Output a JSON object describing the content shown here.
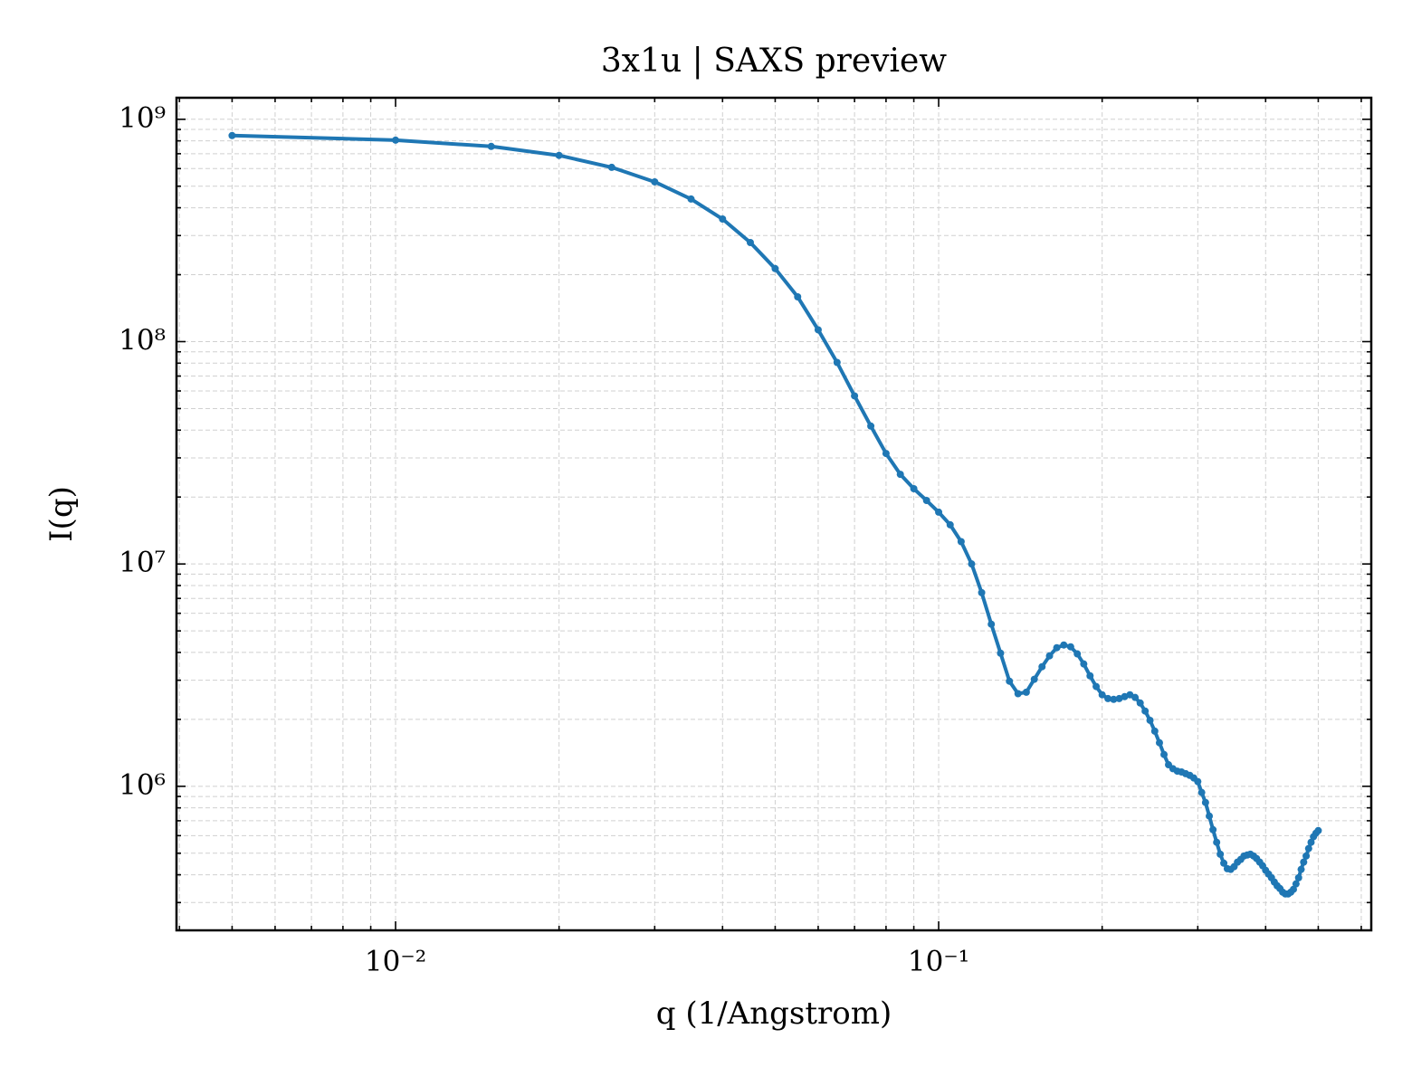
{
  "chart_data": {
    "type": "line",
    "title": "3x1u | SAXS preview",
    "xlabel": "q (1/Angstrom)",
    "ylabel": "I(q)",
    "xscale": "log",
    "yscale": "log",
    "grid": true,
    "xlim": [
      0.00395,
      0.626
    ],
    "ylim": [
      225000,
      1250000000
    ],
    "xticks": [
      {
        "value": 0.01,
        "label": "10⁻²"
      },
      {
        "value": 0.1,
        "label": "10⁻¹"
      }
    ],
    "yticks": [
      {
        "value": 1000000,
        "label": "10⁶"
      },
      {
        "value": 10000000,
        "label": "10⁷"
      },
      {
        "value": 100000000,
        "label": "10⁸"
      },
      {
        "value": 1000000000,
        "label": "10⁹"
      }
    ],
    "xminorticks": [
      0.004,
      0.005,
      0.006,
      0.007,
      0.008,
      0.009,
      0.02,
      0.03,
      0.04,
      0.05,
      0.06,
      0.07,
      0.08,
      0.09,
      0.2,
      0.3,
      0.4,
      0.5,
      0.6
    ],
    "yminorticks": [
      300000,
      400000,
      500000,
      600000,
      700000,
      800000,
      900000,
      2000000,
      3000000,
      4000000,
      5000000,
      6000000,
      7000000,
      8000000,
      9000000,
      20000000,
      30000000,
      40000000,
      50000000,
      60000000,
      70000000,
      80000000,
      90000000,
      200000000,
      300000000,
      400000000,
      500000000,
      600000000,
      700000000,
      800000000,
      900000000
    ],
    "x": [
      0.005,
      0.01,
      0.015,
      0.02,
      0.025,
      0.03,
      0.035,
      0.04,
      0.045,
      0.05,
      0.055,
      0.06,
      0.065,
      0.07,
      0.075,
      0.08,
      0.085,
      0.09,
      0.095,
      0.1,
      0.105,
      0.11,
      0.115,
      0.12,
      0.125,
      0.13,
      0.135,
      0.14,
      0.145,
      0.15,
      0.155,
      0.16,
      0.165,
      0.17,
      0.175,
      0.18,
      0.185,
      0.19,
      0.195,
      0.2,
      0.205,
      0.21,
      0.215,
      0.22,
      0.225,
      0.23,
      0.235,
      0.24,
      0.245,
      0.25,
      0.255,
      0.26,
      0.265,
      0.27,
      0.275,
      0.28,
      0.285,
      0.29,
      0.295,
      0.3,
      0.305,
      0.31,
      0.315,
      0.32,
      0.325,
      0.33,
      0.335,
      0.34,
      0.345,
      0.35,
      0.355,
      0.36,
      0.365,
      0.37,
      0.375,
      0.38,
      0.385,
      0.39,
      0.395,
      0.4,
      0.405,
      0.41,
      0.415,
      0.42,
      0.425,
      0.43,
      0.435,
      0.44,
      0.445,
      0.45,
      0.455,
      0.46,
      0.465,
      0.47,
      0.475,
      0.48,
      0.485,
      0.49,
      0.495,
      0.5
    ],
    "series": [
      {
        "color": "#1f77b4",
        "values": [
          845000000,
          806000000,
          755000000,
          688000000,
          608000000,
          523000000,
          438000000,
          356000000,
          279000000,
          213000000,
          159000000,
          113000000,
          80600000,
          57000000,
          41700000,
          31400000,
          25300000,
          21800000,
          19300000,
          17100000,
          15000000,
          12600000,
          10000000,
          7430000,
          5360000,
          3970000,
          2970000,
          2610000,
          2650000,
          3030000,
          3450000,
          3860000,
          4200000,
          4320000,
          4240000,
          3940000,
          3550000,
          3140000,
          2810000,
          2580000,
          2480000,
          2460000,
          2480000,
          2530000,
          2580000,
          2510000,
          2370000,
          2180000,
          1980000,
          1770000,
          1570000,
          1390000,
          1250000,
          1200000,
          1170000,
          1160000,
          1140000,
          1120000,
          1090000,
          1050000,
          938000,
          846000,
          735000,
          638000,
          560000,
          495000,
          451000,
          426000,
          423000,
          435000,
          456000,
          469000,
          486000,
          491000,
          495000,
          486000,
          473000,
          456000,
          439000,
          419000,
          403000,
          388000,
          371000,
          357000,
          347000,
          334000,
          328000,
          328000,
          334000,
          344000,
          364000,
          388000,
          423000,
          456000,
          486000,
          525000,
          560000,
          593000,
          615000,
          632000
        ]
      }
    ]
  }
}
